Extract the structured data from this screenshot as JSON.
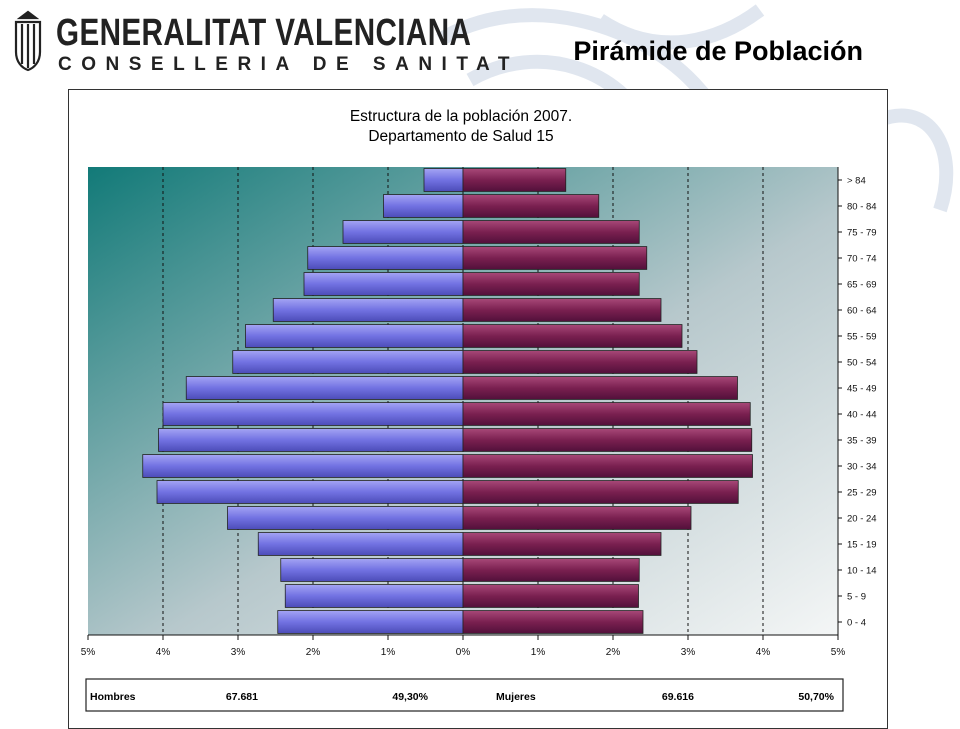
{
  "header": {
    "logo_line1": "GENERALITAT VALENCIANA",
    "logo_line2": "CONSELLERIA DE SANITAT",
    "page_title": "Pirámide de Población"
  },
  "chart_data": {
    "type": "bar",
    "orientation": "horizontal",
    "title_lines": [
      "Estructura de la población 2007.",
      "Departamento de Salud 15"
    ],
    "categories": [
      "0 - 4",
      "5 - 9",
      "10 - 14",
      "15 - 19",
      "20 - 24",
      "25 - 29",
      "30 - 34",
      "35 - 39",
      "40 - 44",
      "45 - 49",
      "50 - 54",
      "55 - 59",
      "60 - 64",
      "65 - 69",
      "70 - 74",
      "75 - 79",
      "80 - 84",
      "> 84"
    ],
    "series": [
      {
        "name": "Hombres",
        "color": "#7070e0",
        "values": [
          2.47,
          2.37,
          2.43,
          2.73,
          3.14,
          4.08,
          4.27,
          4.06,
          4.0,
          3.69,
          3.07,
          2.9,
          2.53,
          2.12,
          2.07,
          1.6,
          1.06,
          0.52
        ]
      },
      {
        "name": "Mujeres",
        "color": "#7a2050",
        "values": [
          2.4,
          2.34,
          2.35,
          2.64,
          3.04,
          3.67,
          3.86,
          3.85,
          3.83,
          3.66,
          3.12,
          2.92,
          2.64,
          2.35,
          2.45,
          2.35,
          1.81,
          1.37
        ]
      }
    ],
    "xlim": [
      -5,
      5
    ],
    "x_ticks": [
      -5,
      -4,
      -3,
      -2,
      -1,
      0,
      1,
      2,
      3,
      4,
      5
    ],
    "x_tick_labels": [
      "5%",
      "4%",
      "3%",
      "2%",
      "1%",
      "0%",
      "1%",
      "2%",
      "3%",
      "4%",
      "5%"
    ],
    "grid": "vertical dashed",
    "background_gradient": [
      "#1a7f7f",
      "#ffffff"
    ],
    "summary": {
      "hombres_label": "Hombres",
      "hombres_count": "67.681",
      "hombres_pct": "49,30%",
      "mujeres_label": "Mujeres",
      "mujeres_count": "69.616",
      "mujeres_pct": "50,70%"
    }
  }
}
